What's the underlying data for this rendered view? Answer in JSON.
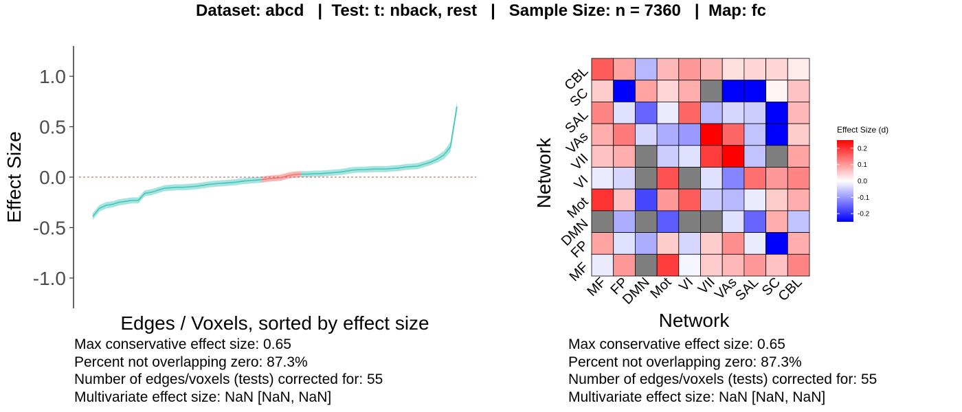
{
  "title": "Dataset: abcd   |  Test: t: nback, rest   |   Sample Size: n = 7360   |  Map: fc",
  "chart_data": [
    {
      "type": "line",
      "xlabel": "Edges / Voxels, sorted by effect size",
      "ylabel": "Effect Size",
      "ylim": [
        -1.3,
        1.3
      ],
      "yticks": [
        "-1.0",
        "-0.5",
        "0.0",
        "0.5",
        "1.0"
      ],
      "ytick_values": [
        -1.0,
        -0.5,
        0.0,
        0.5,
        1.0
      ],
      "reference_line": 0,
      "band_color_not_overlapping_zero": "#a8e3e0",
      "band_color_overlapping_zero": "#f8b4b0",
      "line_color_not_overlapping_zero": "#3ec9b9",
      "line_color_overlapping_zero": "#f07a72",
      "values": [
        -0.39,
        -0.31,
        -0.28,
        -0.27,
        -0.25,
        -0.24,
        -0.23,
        -0.23,
        -0.16,
        -0.15,
        -0.13,
        -0.11,
        -0.105,
        -0.1,
        -0.1,
        -0.095,
        -0.09,
        -0.08,
        -0.07,
        -0.065,
        -0.06,
        -0.055,
        -0.05,
        -0.04,
        -0.035,
        -0.03,
        -0.025,
        -0.015,
        -0.01,
        -0.005,
        0.015,
        0.025,
        0.03,
        0.03,
        0.035,
        0.035,
        0.04,
        0.045,
        0.05,
        0.06,
        0.07,
        0.075,
        0.075,
        0.08,
        0.08,
        0.08,
        0.085,
        0.09,
        0.1,
        0.105,
        0.11,
        0.13,
        0.15,
        0.18,
        0.22,
        0.3,
        0.7
      ],
      "ci_halfwidth": [
        0.035,
        0.033,
        0.032,
        0.031,
        0.031,
        0.03,
        0.03,
        0.03,
        0.03,
        0.03,
        0.03,
        0.03,
        0.03,
        0.03,
        0.03,
        0.03,
        0.03,
        0.03,
        0.03,
        0.03,
        0.03,
        0.03,
        0.03,
        0.03,
        0.03,
        0.03,
        0.03,
        0.03,
        0.03,
        0.03,
        0.03,
        0.03,
        0.03,
        0.03,
        0.03,
        0.03,
        0.03,
        0.03,
        0.03,
        0.03,
        0.03,
        0.03,
        0.03,
        0.03,
        0.03,
        0.03,
        0.03,
        0.03,
        0.03,
        0.03,
        0.03,
        0.03,
        0.03,
        0.035,
        0.04,
        0.05,
        0.05
      ],
      "overlapping_zero_range": [
        26,
        32
      ],
      "stats_lines": [
        "Max conservative effect size: 0.65",
        "Percent not overlapping zero: 87.3%",
        "Number of edges/voxels (tests) corrected for: 55",
        "Multivariate effect size: NaN [NaN, NaN]"
      ]
    },
    {
      "type": "heatmap",
      "xlabel": "Network",
      "ylabel": "Network",
      "networks": [
        "MF",
        "FP",
        "DMN",
        "Mot",
        "VI",
        "VII",
        "VAs",
        "SAL",
        "SC",
        "CBL"
      ],
      "missing_color": "#7f7f7f",
      "color_scale": {
        "low": "#0000ff",
        "mid": "#ffffff",
        "high": "#ff0000",
        "min": -0.25,
        "max": 0.25
      },
      "rows_top_to_bottom": [
        "CBL",
        "SC",
        "SAL",
        "VAs",
        "VII",
        "VI",
        "Mot",
        "DMN",
        "FP",
        "MF"
      ],
      "values": [
        [
          0.16,
          0.09,
          -0.07,
          0.07,
          0.1,
          0.07,
          0.03,
          0.04,
          0.04,
          0.02
        ],
        [
          0.05,
          -0.25,
          0.09,
          0.04,
          0.08,
          null,
          -0.25,
          -0.25,
          0.01,
          0.06
        ],
        [
          0.12,
          -0.03,
          -0.15,
          -0.02,
          0.15,
          -0.07,
          -0.04,
          -0.05,
          -0.25,
          0.07
        ],
        [
          0.08,
          0.13,
          -0.04,
          -0.08,
          -0.1,
          0.25,
          0.15,
          -0.06,
          -0.25,
          0.05
        ],
        [
          0.06,
          0.08,
          null,
          -0.05,
          -0.03,
          0.19,
          0.25,
          -0.06,
          null,
          0.09
        ],
        [
          -0.02,
          -0.04,
          null,
          0.17,
          null,
          -0.03,
          -0.12,
          0.14,
          0.1,
          0.12
        ],
        [
          0.2,
          0.06,
          -0.18,
          0.1,
          0.16,
          -0.05,
          -0.07,
          -0.02,
          0.05,
          0.08
        ],
        [
          null,
          -0.08,
          null,
          -0.16,
          null,
          null,
          -0.03,
          -0.15,
          0.08,
          -0.06
        ],
        [
          0.09,
          -0.03,
          -0.08,
          0.05,
          -0.04,
          0.05,
          0.11,
          -0.02,
          -0.25,
          0.08
        ],
        [
          -0.02,
          0.1,
          null,
          0.19,
          -0.01,
          0.05,
          0.07,
          0.1,
          0.06,
          0.12
        ]
      ],
      "legend": {
        "title": "Effect Size (d)",
        "ticks": [
          "0.2",
          "0.1",
          "0.0",
          "-0.1",
          "-0.2"
        ],
        "tick_values": [
          0.2,
          0.1,
          0.0,
          -0.1,
          -0.2
        ]
      },
      "stats_lines": [
        "Max conservative effect size: 0.65",
        "Percent not overlapping zero: 87.3%",
        "Number of edges/voxels (tests) corrected for: 55",
        "Multivariate effect size: NaN [NaN, NaN]"
      ]
    }
  ]
}
